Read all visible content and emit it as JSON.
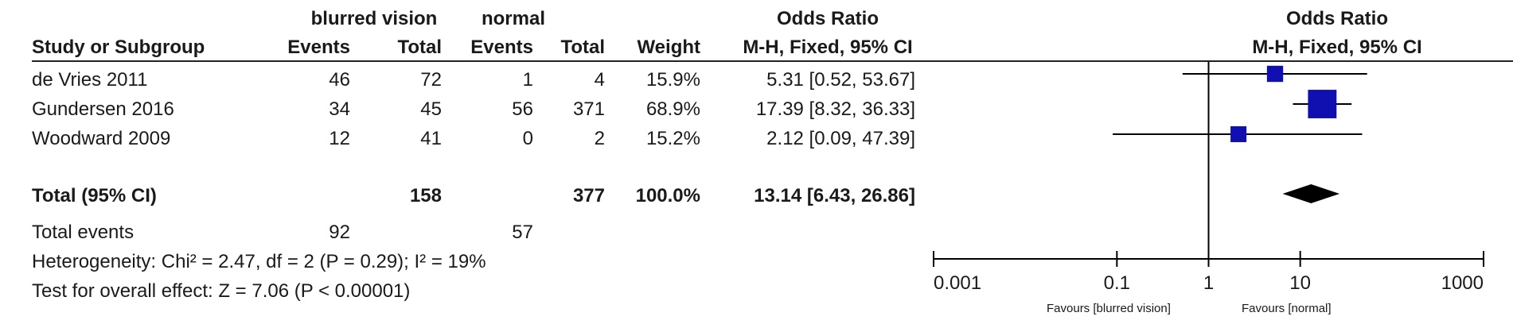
{
  "header": {
    "group1": "blurred vision",
    "group2": "normal",
    "or_title": "Odds Ratio",
    "plot_title": "Odds Ratio",
    "col_study": "Study or Subgroup",
    "col_events1": "Events",
    "col_total1": "Total",
    "col_events2": "Events",
    "col_total2": "Total",
    "col_weight": "Weight",
    "col_method": "M-H, Fixed, 95% CI",
    "plot_method": "M-H, Fixed, 95% CI"
  },
  "studies": [
    {
      "name": "de Vries 2011",
      "events1": "46",
      "total1": "72",
      "events2": "1",
      "total2": "4",
      "weight": "15.9%",
      "ci_text": "5.31 [0.52, 53.67]"
    },
    {
      "name": "Gundersen  2016",
      "events1": "34",
      "total1": "45",
      "events2": "56",
      "total2": "371",
      "weight": "68.9%",
      "ci_text": "17.39 [8.32, 36.33]"
    },
    {
      "name": "Woodward 2009",
      "events1": "12",
      "total1": "41",
      "events2": "0",
      "total2": "2",
      "weight": "15.2%",
      "ci_text": "2.12 [0.09, 47.39]"
    }
  ],
  "total": {
    "label": "Total (95% CI)",
    "total1": "158",
    "total2": "377",
    "weight": "100.0%",
    "ci_text": "13.14 [6.43, 26.86]"
  },
  "total_events": {
    "label": "Total events",
    "events1": "92",
    "events2": "57"
  },
  "heterogeneity": "Heterogeneity: Chi² = 2.47, df = 2 (P = 0.29); I² = 19%",
  "overall_effect": "Test for overall effect: Z = 7.06 (P < 0.00001)",
  "axis": {
    "ticks": [
      "0.001",
      "0.1",
      "1",
      "10",
      "1000"
    ],
    "favours_left": "Favours [blurred vision]",
    "favours_right": "Favours [normal]"
  },
  "colors": {
    "square": "#1010b0",
    "diamond": "#000000",
    "line": "#000000"
  },
  "chart_data": {
    "type": "scatter",
    "subtype": "forest",
    "title": "Odds Ratio",
    "subtitle": "M-H, Fixed, 95% CI",
    "xscale": "log",
    "xlim": [
      0.001,
      1000
    ],
    "xticks": [
      0.001,
      0.1,
      1,
      10,
      1000
    ],
    "null_line": 1,
    "categories": [
      "de Vries 2011",
      "Gundersen  2016",
      "Woodward 2009"
    ],
    "series": [
      {
        "or": 5.31,
        "lower": 0.52,
        "upper": 53.67,
        "weight": 15.9
      },
      {
        "or": 17.39,
        "lower": 8.32,
        "upper": 36.33,
        "weight": 68.9
      },
      {
        "or": 2.12,
        "lower": 0.09,
        "upper": 47.39,
        "weight": 15.2
      }
    ],
    "pooled": {
      "or": 13.14,
      "lower": 6.43,
      "upper": 26.86
    }
  }
}
